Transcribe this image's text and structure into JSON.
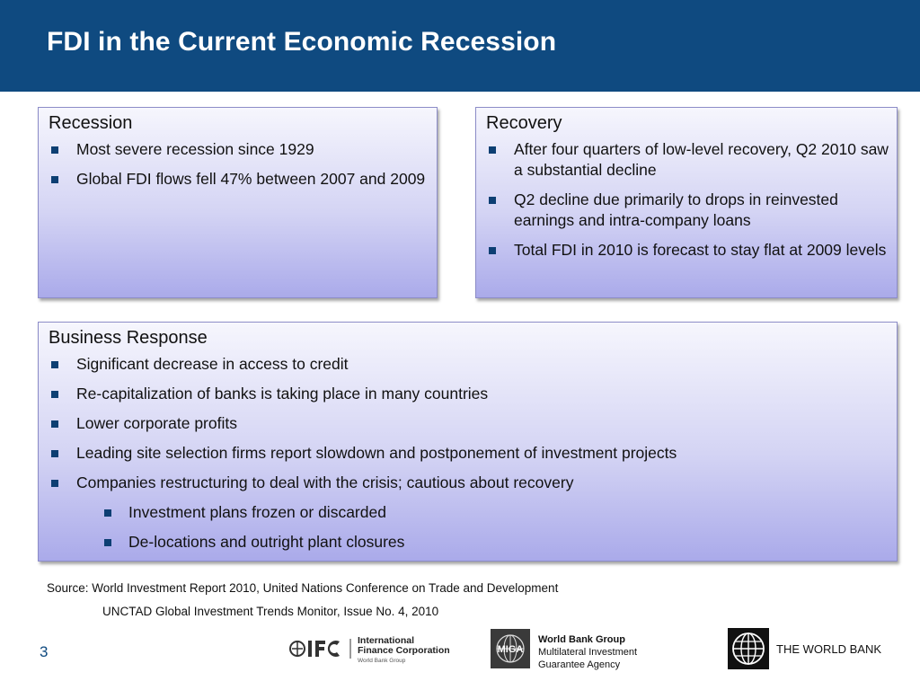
{
  "header": {
    "title": "FDI in the Current Economic Recession"
  },
  "recession": {
    "heading": "Recession",
    "items": [
      "Most severe recession since 1929",
      "Global FDI flows fell 47% between 2007 and 2009"
    ]
  },
  "recovery": {
    "heading": "Recovery",
    "items": [
      "After four quarters of low-level recovery, Q2 2010 saw a substantial decline",
      "Q2 decline due primarily to drops in reinvested earnings and intra-company loans",
      "Total FDI in 2010 is forecast to stay flat at 2009 levels"
    ]
  },
  "business": {
    "heading": "Business Response",
    "items": [
      "Significant decrease in access to credit",
      "Re-capitalization of banks is taking place in many countries",
      "Lower corporate profits",
      "Leading site selection firms report slowdown and postponement of investment projects",
      "Companies restructuring to deal with the crisis; cautious about recovery"
    ],
    "subitems": [
      "Investment plans frozen or discarded",
      "De-locations and outright plant closures"
    ]
  },
  "footer": {
    "source_line1": "Source: World Investment Report 2010, United Nations Conference on Trade and Development",
    "source_line2": "UNCTAD Global Investment Trends Monitor, Issue No. 4, 2010",
    "page_number": "3",
    "ifc_line1": "International",
    "ifc_line2": "Finance Corporation",
    "ifc_line3": "World Bank Group",
    "miga_line1": "World Bank Group",
    "miga_line2": "Multilateral Investment",
    "miga_line3": "Guarantee Agency",
    "wb_label": "THE WORLD BANK",
    "miga_mark": "MIGA"
  },
  "colors": {
    "header_bg": "#0f4a80",
    "bullet": "#0d3f73",
    "box_border": "#8c8cc8"
  },
  "icons": {
    "ifc": "ifc-logo",
    "miga": "miga-globe-logo",
    "worldbank": "world-bank-globe-logo"
  }
}
